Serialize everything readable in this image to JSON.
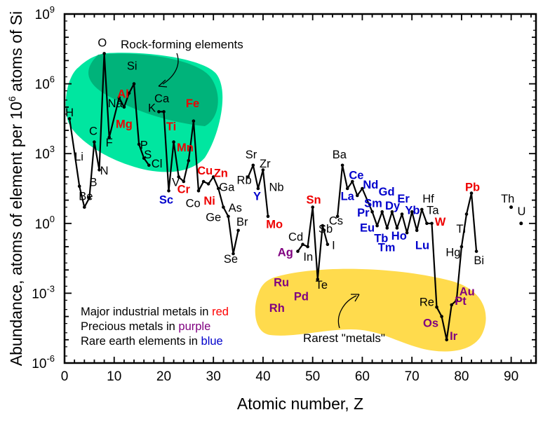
{
  "chart_data": {
    "type": "line",
    "xlabel": "Atomic number, Z",
    "ylabel_main": "Abundance, atoms of element per 10",
    "ylabel_sup": "6",
    "ylabel_tail": " atoms of Si",
    "xlim": [
      0,
      95
    ],
    "ylim_log10": [
      -6,
      9
    ],
    "y_scale": "log",
    "x_ticks": [
      0,
      10,
      20,
      30,
      40,
      50,
      60,
      70,
      80,
      90
    ],
    "y_ticks": [
      {
        "exp": -6,
        "base": "10",
        "sup": "-6"
      },
      {
        "exp": -3,
        "base": "10",
        "sup": "-3"
      },
      {
        "exp": 0,
        "base": "10",
        "sup": "0"
      },
      {
        "exp": 3,
        "base": "10",
        "sup": "3"
      },
      {
        "exp": 6,
        "base": "10",
        "sup": "6"
      },
      {
        "exp": 9,
        "base": "10",
        "sup": "9"
      }
    ],
    "series_log10": [
      [
        [
          1,
          4.5
        ],
        [
          3,
          1.6
        ],
        [
          4,
          0.7
        ],
        [
          5,
          1.1
        ],
        [
          6,
          3.5
        ],
        [
          7,
          2.3
        ],
        [
          8,
          7.3
        ],
        [
          9,
          3.7
        ],
        [
          11,
          5.4
        ],
        [
          12,
          5.0
        ],
        [
          13,
          5.6
        ],
        [
          14,
          6.0
        ],
        [
          15,
          3.4
        ],
        [
          16,
          2.8
        ],
        [
          17,
          2.5
        ]
      ],
      [
        [
          19,
          4.8
        ],
        [
          20,
          4.8
        ],
        [
          21,
          1.4
        ],
        [
          22,
          3.5
        ],
        [
          23,
          2.0
        ],
        [
          24,
          1.8
        ],
        [
          25,
          2.7
        ],
        [
          26,
          4.4
        ],
        [
          27,
          1.4
        ],
        [
          28,
          1.8
        ],
        [
          29,
          1.7
        ],
        [
          30,
          2.0
        ],
        [
          31,
          1.5
        ],
        [
          32,
          0.7
        ],
        [
          33,
          0.3
        ],
        [
          34,
          -1.3
        ],
        [
          35,
          -0.3
        ]
      ],
      [
        [
          37,
          2.0
        ],
        [
          38,
          2.5
        ],
        [
          39,
          1.5
        ],
        [
          40,
          2.3
        ],
        [
          41,
          0.3
        ]
      ],
      [
        [
          47,
          -1.2
        ],
        [
          48,
          -0.9
        ],
        [
          49,
          -1.0
        ],
        [
          50,
          0.7
        ],
        [
          51,
          -2.4
        ],
        [
          52,
          -0.1
        ],
        [
          53,
          -0.9
        ]
      ],
      [
        [
          55,
          0.3
        ],
        [
          56,
          2.5
        ],
        [
          57,
          1.5
        ],
        [
          58,
          1.8
        ],
        [
          59,
          1.2
        ],
        [
          60,
          1.5
        ],
        [
          62,
          0.5
        ],
        [
          63,
          -0.1
        ],
        [
          64,
          0.5
        ],
        [
          65,
          -0.2
        ],
        [
          66,
          0.5
        ],
        [
          67,
          -0.2
        ],
        [
          68,
          0.4
        ],
        [
          69,
          -0.4
        ],
        [
          70,
          0.5
        ],
        [
          71,
          -0.3
        ],
        [
          72,
          0.6
        ],
        [
          73,
          0.0
        ],
        [
          74,
          0.0
        ],
        [
          75,
          -3.6
        ],
        [
          76,
          -4.0
        ],
        [
          77,
          -5.0
        ],
        [
          78,
          -3.5
        ],
        [
          79,
          -3.3
        ],
        [
          80,
          -1.0
        ],
        [
          81,
          0.4
        ],
        [
          82,
          1.3
        ],
        [
          83,
          -1.2
        ]
      ]
    ],
    "single_points_log10": [
      [
        90,
        0.7
      ],
      [
        92,
        0.0
      ]
    ],
    "regions": [
      {
        "name": "rock-forming-region",
        "label": "Rock-forming elements"
      },
      {
        "name": "rarest-metals-region",
        "label": "Rarest \"metals\""
      }
    ],
    "element_labels": [
      {
        "t": "H",
        "z": 1,
        "v": 4.6,
        "c": "black"
      },
      {
        "t": "Li",
        "z": 2.9,
        "v": 2.7,
        "c": "black"
      },
      {
        "t": "Be",
        "z": 4.3,
        "v": 1.0,
        "c": "black"
      },
      {
        "t": "B",
        "z": 5.8,
        "v": 1.6,
        "c": "black"
      },
      {
        "t": "C",
        "z": 5.8,
        "v": 3.8,
        "c": "black"
      },
      {
        "t": "N",
        "z": 8.0,
        "v": 2.1,
        "c": "black"
      },
      {
        "t": "O",
        "z": 7.6,
        "v": 7.6,
        "c": "black"
      },
      {
        "t": "F",
        "z": 9.0,
        "v": 3.3,
        "c": "black"
      },
      {
        "t": "Na",
        "z": 10.2,
        "v": 5.0,
        "c": "black"
      },
      {
        "t": "Al",
        "z": 11.8,
        "v": 5.4,
        "c": "red"
      },
      {
        "t": "Si",
        "z": 13.6,
        "v": 6.6,
        "c": "black"
      },
      {
        "t": "Mg",
        "z": 12.0,
        "v": 4.1,
        "c": "red"
      },
      {
        "t": "P",
        "z": 16.0,
        "v": 3.2,
        "c": "black"
      },
      {
        "t": "S",
        "z": 16.8,
        "v": 2.8,
        "c": "black"
      },
      {
        "t": "Cl",
        "z": 18.6,
        "v": 2.4,
        "c": "black"
      },
      {
        "t": "K",
        "z": 17.6,
        "v": 4.8,
        "c": "black"
      },
      {
        "t": "Ca",
        "z": 19.6,
        "v": 5.2,
        "c": "black"
      },
      {
        "t": "Fe",
        "z": 25.8,
        "v": 5.0,
        "c": "red"
      },
      {
        "t": "Ti",
        "z": 21.5,
        "v": 4.0,
        "c": "red"
      },
      {
        "t": "Mn",
        "z": 24.3,
        "v": 3.1,
        "c": "red"
      },
      {
        "t": "V",
        "z": 22.4,
        "v": 1.6,
        "c": "black"
      },
      {
        "t": "Cr",
        "z": 24.0,
        "v": 1.3,
        "c": "red"
      },
      {
        "t": "Sc",
        "z": 20.5,
        "v": 0.85,
        "c": "blue"
      },
      {
        "t": "Co",
        "z": 25.9,
        "v": 0.7,
        "c": "black"
      },
      {
        "t": "Cu",
        "z": 28.3,
        "v": 2.1,
        "c": "red"
      },
      {
        "t": "Zn",
        "z": 31.5,
        "v": 2.0,
        "c": "red"
      },
      {
        "t": "Ni",
        "z": 29.2,
        "v": 0.8,
        "c": "red"
      },
      {
        "t": "Ga",
        "z": 32.7,
        "v": 1.4,
        "c": "black"
      },
      {
        "t": "Ge",
        "z": 30.0,
        "v": 0.1,
        "c": "black"
      },
      {
        "t": "As",
        "z": 34.4,
        "v": 0.5,
        "c": "black"
      },
      {
        "t": "Se",
        "z": 33.5,
        "v": -1.7,
        "c": "black"
      },
      {
        "t": "Br",
        "z": 35.8,
        "v": -0.1,
        "c": "black"
      },
      {
        "t": "Sr",
        "z": 37.6,
        "v": 2.8,
        "c": "black"
      },
      {
        "t": "Rb",
        "z": 36.2,
        "v": 1.7,
        "c": "black"
      },
      {
        "t": "Zr",
        "z": 40.4,
        "v": 2.4,
        "c": "black"
      },
      {
        "t": "Y",
        "z": 38.8,
        "v": 1.0,
        "c": "blue"
      },
      {
        "t": "Nb",
        "z": 42.7,
        "v": 1.4,
        "c": "black"
      },
      {
        "t": "Mo",
        "z": 42.3,
        "v": -0.2,
        "c": "red"
      },
      {
        "t": "Sn",
        "z": 50.2,
        "v": 0.85,
        "c": "red"
      },
      {
        "t": "Cd",
        "z": 46.6,
        "v": -0.75,
        "c": "black"
      },
      {
        "t": "Ag",
        "z": 44.5,
        "v": -1.4,
        "c": "purple"
      },
      {
        "t": "In",
        "z": 49.1,
        "v": -1.6,
        "c": "black"
      },
      {
        "t": "Sb",
        "z": 52.6,
        "v": -0.4,
        "c": "black"
      },
      {
        "t": "I",
        "z": 54.2,
        "v": -1.1,
        "c": "black"
      },
      {
        "t": "Te",
        "z": 51.8,
        "v": -2.8,
        "c": "black"
      },
      {
        "t": "Ru",
        "z": 43.7,
        "v": -2.7,
        "c": "purple"
      },
      {
        "t": "Pd",
        "z": 47.7,
        "v": -3.3,
        "c": "purple"
      },
      {
        "t": "Rh",
        "z": 42.8,
        "v": -3.8,
        "c": "purple"
      },
      {
        "t": "Ba",
        "z": 55.4,
        "v": 2.8,
        "c": "black"
      },
      {
        "t": "Ce",
        "z": 58.8,
        "v": 1.9,
        "c": "blue"
      },
      {
        "t": "La",
        "z": 57.0,
        "v": 1.0,
        "c": "blue"
      },
      {
        "t": "Cs",
        "z": 54.7,
        "v": -0.05,
        "c": "black"
      },
      {
        "t": "Nd",
        "z": 61.7,
        "v": 1.5,
        "c": "blue"
      },
      {
        "t": "Gd",
        "z": 64.9,
        "v": 1.2,
        "c": "blue"
      },
      {
        "t": "Sm",
        "z": 62.2,
        "v": 0.7,
        "c": "blue"
      },
      {
        "t": "Pr",
        "z": 60.2,
        "v": 0.3,
        "c": "blue"
      },
      {
        "t": "Er",
        "z": 68.3,
        "v": 0.9,
        "c": "blue"
      },
      {
        "t": "Dy",
        "z": 66.1,
        "v": 0.6,
        "c": "blue"
      },
      {
        "t": "Yb",
        "z": 70.1,
        "v": 0.4,
        "c": "blue"
      },
      {
        "t": "Hf",
        "z": 73.3,
        "v": 0.9,
        "c": "black"
      },
      {
        "t": "Ta",
        "z": 74.2,
        "v": 0.4,
        "c": "black"
      },
      {
        "t": "W",
        "z": 75.7,
        "v": -0.1,
        "c": "red"
      },
      {
        "t": "Eu",
        "z": 61.0,
        "v": -0.35,
        "c": "blue"
      },
      {
        "t": "Tb",
        "z": 63.8,
        "v": -0.8,
        "c": "blue"
      },
      {
        "t": "Ho",
        "z": 67.4,
        "v": -0.7,
        "c": "blue"
      },
      {
        "t": "Tm",
        "z": 64.9,
        "v": -1.2,
        "c": "blue"
      },
      {
        "t": "Lu",
        "z": 72.1,
        "v": -1.1,
        "c": "blue"
      },
      {
        "t": "Pb",
        "z": 82.2,
        "v": 1.4,
        "c": "red"
      },
      {
        "t": "Th",
        "z": 89.3,
        "v": 0.9,
        "c": "black"
      },
      {
        "t": "U",
        "z": 92.1,
        "v": 0.35,
        "c": "black"
      },
      {
        "t": "Tl",
        "z": 79.9,
        "v": -0.4,
        "c": "black"
      },
      {
        "t": "Hg",
        "z": 78.3,
        "v": -1.4,
        "c": "black"
      },
      {
        "t": "Bi",
        "z": 83.5,
        "v": -1.75,
        "c": "black"
      },
      {
        "t": "Au",
        "z": 81.1,
        "v": -3.1,
        "c": "purple"
      },
      {
        "t": "Pt",
        "z": 79.8,
        "v": -3.5,
        "c": "purple"
      },
      {
        "t": "Re",
        "z": 73.0,
        "v": -3.55,
        "c": "black"
      },
      {
        "t": "Os",
        "z": 73.8,
        "v": -4.45,
        "c": "purple"
      },
      {
        "t": "Ir",
        "z": 78.4,
        "v": -5.0,
        "c": "purple"
      }
    ],
    "legend": [
      {
        "prefix": "Major industrial metals in ",
        "word": "red",
        "color": "#ff0000"
      },
      {
        "prefix": "Precious metals in ",
        "word": "purple",
        "color": "#800080"
      },
      {
        "prefix": "Rare earth elements in ",
        "word": "blue",
        "color": "#0000cc"
      }
    ]
  },
  "colors": {
    "red": "#ee0000",
    "purple": "#800080",
    "blue": "#0000cc",
    "rock_outer": "#00e6a0",
    "rock_inner": "#00b37a",
    "rarest_fill": "#ffdb4d",
    "line": "#000000"
  }
}
